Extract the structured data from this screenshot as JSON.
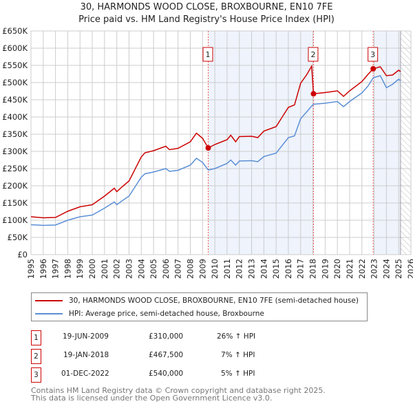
{
  "chart_data": {
    "type": "line",
    "title": "30, HARMONDS WOOD CLOSE, BROXBOURNE, EN10 7FE",
    "subtitle": "Price paid vs. HM Land Registry's House Price Index (HPI)",
    "xlim": [
      1995,
      2026
    ],
    "ylim": [
      0,
      650000
    ],
    "yticks": [
      {
        "v": 0,
        "l": "£0"
      },
      {
        "v": 50000,
        "l": "£50K"
      },
      {
        "v": 100000,
        "l": "£100K"
      },
      {
        "v": 150000,
        "l": "£150K"
      },
      {
        "v": 200000,
        "l": "£200K"
      },
      {
        "v": 250000,
        "l": "£250K"
      },
      {
        "v": 300000,
        "l": "£300K"
      },
      {
        "v": 350000,
        "l": "£350K"
      },
      {
        "v": 400000,
        "l": "£400K"
      },
      {
        "v": 450000,
        "l": "£450K"
      },
      {
        "v": 500000,
        "l": "£500K"
      },
      {
        "v": 550000,
        "l": "£550K"
      },
      {
        "v": 600000,
        "l": "£600K"
      },
      {
        "v": 650000,
        "l": "£650K"
      }
    ],
    "xticks": [
      "1995",
      "1996",
      "1997",
      "1998",
      "1999",
      "2000",
      "2001",
      "2002",
      "2003",
      "2004",
      "2005",
      "2006",
      "2007",
      "2008",
      "2009",
      "2010",
      "2011",
      "2012",
      "2013",
      "2014",
      "2015",
      "2016",
      "2017",
      "2018",
      "2019",
      "2020",
      "2021",
      "2022",
      "2023",
      "2024",
      "2025",
      "2026"
    ],
    "grid": true,
    "data_end": 2025.15,
    "series": [
      {
        "name": "30, HARMONDS WOOD CLOSE, BROXBOURNE, EN10 7FE (semi-detached house)",
        "color": "#cc0000",
        "x": [
          1995,
          1996,
          1997,
          1998,
          1999,
          2000,
          2001,
          2001.8,
          2002,
          2002.5,
          2003,
          2004,
          2004.3,
          2005,
          2006,
          2006.3,
          2007,
          2008,
          2008.5,
          2009,
          2009.46,
          2010,
          2011,
          2011.3,
          2011.7,
          2012,
          2013,
          2013.5,
          2014,
          2015,
          2016,
          2016.5,
          2017,
          2017.5,
          2017.9,
          2018.05,
          2019,
          2020,
          2020.5,
          2021,
          2022,
          2022.5,
          2022.92,
          2023.5,
          2024,
          2024.5,
          2025,
          2025.15
        ],
        "y": [
          110000,
          107000,
          108000,
          126000,
          139000,
          145000,
          170000,
          193000,
          183000,
          199000,
          214000,
          284000,
          296000,
          302000,
          315000,
          305000,
          309000,
          328000,
          353000,
          338000,
          310000,
          320000,
          334000,
          347000,
          328000,
          343000,
          344000,
          340000,
          359000,
          372000,
          428000,
          435000,
          498000,
          523000,
          548000,
          467500,
          471000,
          476000,
          460000,
          476000,
          503000,
          524000,
          540000,
          546000,
          520000,
          522000,
          536000,
          532000
        ]
      },
      {
        "name": "HPI: Average price, semi-detached house, Broxbourne",
        "color": "#5b8fd6",
        "x": [
          1995,
          1996,
          1997,
          1998,
          1999,
          2000,
          2001,
          2001.8,
          2002,
          2002.5,
          2003,
          2004,
          2004.3,
          2005,
          2006,
          2006.3,
          2007,
          2008,
          2008.5,
          2009,
          2009.46,
          2010,
          2011,
          2011.3,
          2011.7,
          2012,
          2013,
          2013.5,
          2014,
          2015,
          2016,
          2016.5,
          2017,
          2017.5,
          2017.9,
          2018.05,
          2019,
          2020,
          2020.5,
          2021,
          2022,
          2022.5,
          2022.92,
          2023.5,
          2024,
          2024.5,
          2025,
          2025.15
        ],
        "y": [
          87000,
          85000,
          86000,
          100000,
          110000,
          115000,
          135000,
          153000,
          145000,
          158000,
          170000,
          225000,
          235000,
          240000,
          250000,
          242000,
          245000,
          260000,
          280000,
          268000,
          246000,
          250000,
          265000,
          275000,
          260000,
          272000,
          273000,
          270000,
          285000,
          295000,
          340000,
          345000,
          395000,
          415000,
          432000,
          437000,
          440000,
          445000,
          430000,
          445000,
          470000,
          490000,
          514000,
          520000,
          485000,
          495000,
          510000,
          505000
        ]
      }
    ],
    "sales": [
      {
        "n": "1",
        "x": 2009.46,
        "y": 310000,
        "date": "19-JUN-2009",
        "price": "£310,000",
        "hpi": "26% ↑ HPI"
      },
      {
        "n": "2",
        "x": 2018.05,
        "y": 467500,
        "date": "19-JAN-2018",
        "price": "£467,500",
        "hpi": "7% ↑ HPI"
      },
      {
        "n": "3",
        "x": 2022.92,
        "y": 540000,
        "date": "01-DEC-2022",
        "price": "£540,000",
        "hpi": "5% ↑ HPI"
      }
    ]
  },
  "footer": {
    "line1": "Contains HM Land Registry data © Crown copyright and database right 2025.",
    "line2": "This data is licensed under the Open Government Licence v3.0."
  }
}
